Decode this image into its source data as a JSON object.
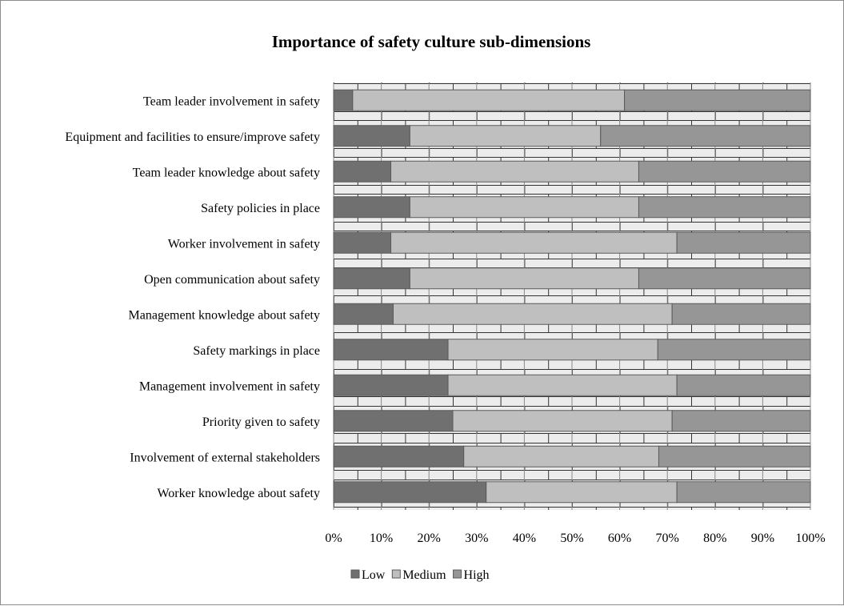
{
  "chart_data": {
    "type": "bar",
    "orientation": "horizontal",
    "stacked": "percent",
    "title": "Importance of safety culture sub-dimensions",
    "categories": [
      "Team leader involvement in safety",
      "Equipment and facilities to ensure/improve safety",
      "Team leader knowledge about safety",
      "Safety policies in place",
      "Worker involvement in safety",
      "Open communication about safety",
      "Management knowledge about safety",
      "Safety markings in place",
      "Management involvement in safety",
      "Priority given to safety",
      "Involvement of external stakeholders",
      "Worker knowledge about safety"
    ],
    "series": [
      {
        "name": "Low",
        "color": "#707070",
        "values": [
          4,
          16,
          12,
          16,
          12,
          16,
          12.5,
          24,
          24,
          25,
          27.3,
          32
        ]
      },
      {
        "name": "Medium",
        "color": "#bfbfbf",
        "values": [
          57,
          40,
          52,
          48,
          60,
          48,
          58.5,
          44,
          48,
          46,
          40.9,
          40
        ]
      },
      {
        "name": "High",
        "color": "#969696",
        "values": [
          39,
          44,
          36,
          36,
          28,
          36,
          29,
          32,
          28,
          29,
          31.8,
          28
        ]
      }
    ],
    "xlim": [
      0,
      100
    ],
    "x_ticks": [
      "0%",
      "10%",
      "20%",
      "30%",
      "40%",
      "50%",
      "60%",
      "70%",
      "80%",
      "90%",
      "100%"
    ],
    "grid": true,
    "legend_position": "bottom"
  }
}
